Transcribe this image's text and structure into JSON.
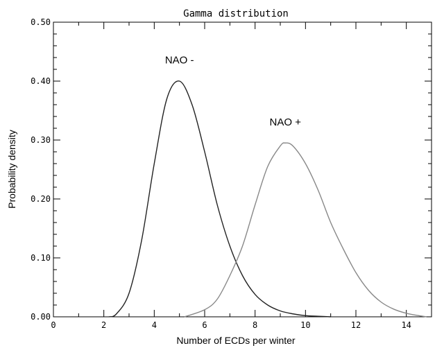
{
  "chart_data": {
    "type": "line",
    "title": "Gamma distribution",
    "xlabel": "Number of ECDs per winter",
    "ylabel": "Probability density",
    "xlim": [
      0,
      15
    ],
    "ylim": [
      0,
      0.5
    ],
    "x_ticks": [
      0,
      2,
      4,
      6,
      8,
      10,
      12,
      14
    ],
    "x_tick_labels": [
      "0",
      "2",
      "4",
      "6",
      "8",
      "10",
      "12",
      "14"
    ],
    "y_ticks": [
      0.0,
      0.1,
      0.2,
      0.3,
      0.4,
      0.5
    ],
    "y_tick_labels": [
      "0.00",
      "0.10",
      "0.20",
      "0.30",
      "0.40",
      "0.50"
    ],
    "grid": false,
    "series": [
      {
        "color": "#222222",
        "x": [
          2.2,
          2.5,
          3.0,
          3.5,
          4.0,
          4.5,
          5.0,
          5.5,
          6.0,
          6.5,
          7.0,
          7.5,
          8.0,
          8.5,
          9.0,
          9.5,
          10.0,
          10.5,
          11.0
        ],
        "y": [
          0.0,
          0.005,
          0.04,
          0.13,
          0.26,
          0.37,
          0.4,
          0.36,
          0.28,
          0.19,
          0.12,
          0.07,
          0.038,
          0.02,
          0.01,
          0.005,
          0.002,
          0.001,
          0.0
        ]
      },
      {
        "color": "#888888",
        "x": [
          5.2,
          6.0,
          6.5,
          7.0,
          7.5,
          8.0,
          8.5,
          9.0,
          9.2,
          9.5,
          10.0,
          10.5,
          11.0,
          11.5,
          12.0,
          12.5,
          13.0,
          13.5,
          14.0,
          14.5,
          14.8
        ],
        "y": [
          0.0,
          0.012,
          0.03,
          0.07,
          0.12,
          0.19,
          0.255,
          0.29,
          0.295,
          0.29,
          0.26,
          0.215,
          0.16,
          0.115,
          0.075,
          0.045,
          0.025,
          0.013,
          0.006,
          0.002,
          0.0
        ]
      }
    ],
    "annotations": [
      {
        "text": "NAO -",
        "x": 5.0,
        "y": 0.43
      },
      {
        "text": "NAO +",
        "x": 9.2,
        "y": 0.325
      }
    ]
  }
}
